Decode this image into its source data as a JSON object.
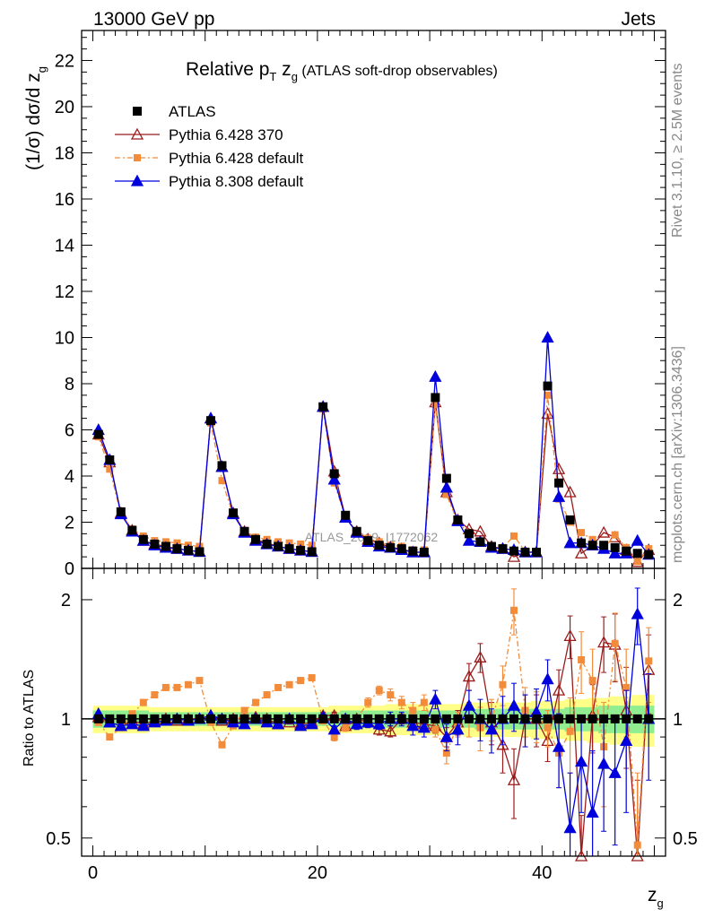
{
  "header": {
    "energy_label": "13000 GeV pp",
    "category_label": "Jets"
  },
  "sidebar": {
    "rivet_label": "Rivet 3.1.10, ≥ 2.5M events",
    "site_label": "mcplots.cern.ch [arXiv:1306.3436]"
  },
  "watermark": "ATLAS_2019_I1772062",
  "colors": {
    "atlas": "#000000",
    "py6_370": "#9b1b1b",
    "py6_def": "#f28c3a",
    "py8_def": "#0000dd",
    "band_inner": "#90ee90",
    "band_outer": "#ffff88"
  },
  "chart_data": {
    "type": "scatter",
    "title": {
      "main": "Relative p",
      "sub_t": "T",
      "main2": " z",
      "sub_g": "g",
      "small": " (ATLAS soft-drop observables)"
    },
    "xlabel": "z",
    "xlabel_sub": "g",
    "ylabel": "(1/σ) dσ/d z",
    "ylabel_sub": "g",
    "ratio_ylabel": "Ratio to ATLAS",
    "xlim": [
      -1,
      51
    ],
    "ylim": [
      0,
      23.3
    ],
    "ratio_ylim": [
      0.45,
      2.4
    ],
    "x_ticks": [
      "0",
      "20",
      "40"
    ],
    "y_ticks": [
      "0",
      "2",
      "4",
      "6",
      "8",
      "10",
      "12",
      "14",
      "16",
      "18",
      "20",
      "22"
    ],
    "ratio_ticks": [
      "0.5",
      "1",
      "2"
    ],
    "legend": [
      "ATLAS",
      "Pythia 6.428 370",
      "Pythia 6.428 default",
      "Pythia 8.308 default"
    ],
    "x": [
      0.5,
      1.5,
      2.5,
      3.5,
      4.5,
      5.5,
      6.5,
      7.5,
      8.5,
      9.5,
      10.5,
      11.5,
      12.5,
      13.5,
      14.5,
      15.5,
      16.5,
      17.5,
      18.5,
      19.5,
      20.5,
      21.5,
      22.5,
      23.5,
      24.5,
      25.5,
      26.5,
      27.5,
      28.5,
      29.5,
      30.5,
      31.5,
      32.5,
      33.5,
      34.5,
      35.5,
      36.5,
      37.5,
      38.5,
      39.5,
      40.5,
      41.5,
      42.5,
      43.5,
      44.5,
      45.5,
      46.5,
      47.5,
      48.5,
      49.5
    ],
    "series": [
      {
        "name": "ATLAS",
        "values": [
          5.8,
          4.7,
          2.45,
          1.65,
          1.25,
          1.05,
          0.95,
          0.85,
          0.78,
          0.72,
          6.4,
          4.45,
          2.4,
          1.6,
          1.25,
          1.05,
          0.95,
          0.85,
          0.78,
          0.72,
          7.0,
          4.1,
          2.3,
          1.6,
          1.2,
          1.0,
          0.9,
          0.85,
          0.75,
          0.7,
          7.4,
          3.9,
          2.1,
          1.5,
          1.15,
          0.95,
          0.85,
          0.75,
          0.7,
          0.7,
          7.9,
          3.7,
          2.1,
          1.1,
          1.0,
          1.0,
          0.9,
          0.75,
          0.65,
          0.6
        ],
        "ratio": [
          1,
          1,
          1,
          1,
          1,
          1,
          1,
          1,
          1,
          1,
          1,
          1,
          1,
          1,
          1,
          1,
          1,
          1,
          1,
          1,
          1,
          1,
          1,
          1,
          1,
          1,
          1,
          1,
          1,
          1,
          1,
          1,
          1,
          1,
          1,
          1,
          1,
          1,
          1,
          1,
          1,
          1,
          1,
          1,
          1,
          1,
          1,
          1,
          1,
          1
        ],
        "band_inner": [
          0.05,
          0.05,
          0.05,
          0.05,
          0.05,
          0.04,
          0.04,
          0.04,
          0.04,
          0.04,
          0.04,
          0.04,
          0.04,
          0.04,
          0.04,
          0.04,
          0.04,
          0.04,
          0.04,
          0.04,
          0.04,
          0.04,
          0.05,
          0.05,
          0.05,
          0.05,
          0.05,
          0.05,
          0.05,
          0.05,
          0.05,
          0.05,
          0.05,
          0.05,
          0.06,
          0.06,
          0.06,
          0.06,
          0.06,
          0.06,
          0.06,
          0.06,
          0.07,
          0.07,
          0.07,
          0.08,
          0.08,
          0.08,
          0.08,
          0.08
        ],
        "band_outer": [
          0.08,
          0.08,
          0.08,
          0.08,
          0.08,
          0.07,
          0.07,
          0.07,
          0.07,
          0.07,
          0.07,
          0.07,
          0.07,
          0.07,
          0.07,
          0.07,
          0.07,
          0.07,
          0.07,
          0.07,
          0.07,
          0.08,
          0.08,
          0.08,
          0.08,
          0.08,
          0.09,
          0.09,
          0.09,
          0.09,
          0.09,
          0.09,
          0.09,
          0.1,
          0.1,
          0.1,
          0.1,
          0.1,
          0.1,
          0.11,
          0.11,
          0.11,
          0.12,
          0.12,
          0.13,
          0.13,
          0.14,
          0.14,
          0.15,
          0.15
        ]
      },
      {
        "name": "Pythia 6.428 370",
        "values": [
          5.8,
          4.6,
          2.4,
          1.65,
          1.2,
          1.05,
          0.95,
          0.85,
          0.78,
          0.72,
          6.5,
          4.4,
          2.4,
          1.6,
          1.25,
          1.1,
          0.95,
          0.85,
          0.78,
          0.72,
          7.0,
          4.2,
          2.2,
          1.6,
          1.25,
          1.1,
          0.9,
          0.85,
          0.7,
          0.7,
          7.2,
          3.3,
          2.1,
          1.7,
          1.6,
          0.95,
          0.85,
          0.5,
          0.7,
          0.7,
          6.7,
          4.3,
          3.3,
          0.65,
          1.0,
          1.55,
          1.35,
          0.8,
          0.28,
          0.8
        ],
        "ratio": [
          1.01,
          0.98,
          0.96,
          0.99,
          0.97,
          0.99,
          1.0,
          0.99,
          1.0,
          1.0,
          1.02,
          0.99,
          1.0,
          1.0,
          1.01,
          1.0,
          0.97,
          0.98,
          0.97,
          0.98,
          1.02,
          1.02,
          0.96,
          1.0,
          0.98,
          0.94,
          0.93,
          1.0,
          0.98,
          0.97,
          0.96,
          0.9,
          0.98,
          1.28,
          1.43,
          0.98,
          0.86,
          0.7,
          1.0,
          1.0,
          0.88,
          1.18,
          1.62,
          0.42,
          1.02,
          1.56,
          1.54,
          1.05,
          0.45,
          1.33
        ],
        "err": [
          0.01,
          0.01,
          0.01,
          0.01,
          0.01,
          0.01,
          0.01,
          0.01,
          0.01,
          0.01,
          0.01,
          0.01,
          0.01,
          0.01,
          0.01,
          0.01,
          0.01,
          0.01,
          0.01,
          0.01,
          0.02,
          0.02,
          0.02,
          0.02,
          0.02,
          0.03,
          0.03,
          0.03,
          0.04,
          0.04,
          0.04,
          0.05,
          0.07,
          0.1,
          0.12,
          0.12,
          0.13,
          0.14,
          0.15,
          0.15,
          0.1,
          0.15,
          0.2,
          0.15,
          0.2,
          0.25,
          0.3,
          0.3,
          0.25,
          0.3
        ]
      },
      {
        "name": "Pythia 6.428 default",
        "values": [
          5.7,
          4.3,
          2.35,
          1.7,
          1.4,
          1.2,
          1.15,
          1.1,
          1.0,
          0.95,
          6.3,
          3.8,
          2.3,
          1.65,
          1.35,
          1.25,
          1.15,
          1.1,
          1.05,
          1.0,
          6.9,
          3.7,
          2.2,
          1.6,
          1.3,
          1.15,
          1.0,
          0.95,
          0.8,
          0.8,
          7.1,
          3.2,
          2.0,
          1.5,
          1.1,
          0.95,
          0.9,
          1.4,
          0.75,
          0.7,
          7.5,
          3.0,
          2.0,
          1.55,
          1.25,
          0.85,
          1.45,
          0.9,
          0.3,
          0.85
        ],
        "ratio": [
          0.98,
          0.9,
          0.95,
          1.03,
          1.1,
          1.15,
          1.2,
          1.2,
          1.22,
          1.25,
          0.98,
          0.86,
          0.96,
          1.05,
          1.1,
          1.15,
          1.2,
          1.22,
          1.25,
          1.27,
          0.99,
          0.9,
          0.95,
          1.0,
          1.1,
          1.18,
          1.15,
          1.1,
          1.05,
          1.1,
          0.94,
          0.82,
          0.97,
          1.0,
          0.95,
          1.0,
          1.22,
          1.88,
          1.05,
          1.02,
          0.95,
          0.82,
          0.93,
          1.41,
          1.25,
          0.85,
          1.55,
          1.2,
          0.48,
          1.4
        ],
        "err": [
          0.01,
          0.01,
          0.01,
          0.01,
          0.02,
          0.02,
          0.02,
          0.02,
          0.02,
          0.02,
          0.01,
          0.01,
          0.01,
          0.01,
          0.02,
          0.02,
          0.02,
          0.02,
          0.02,
          0.02,
          0.02,
          0.02,
          0.02,
          0.02,
          0.03,
          0.03,
          0.04,
          0.04,
          0.05,
          0.05,
          0.04,
          0.05,
          0.07,
          0.1,
          0.12,
          0.12,
          0.14,
          0.25,
          0.15,
          0.15,
          0.1,
          0.15,
          0.2,
          0.25,
          0.25,
          0.25,
          0.3,
          0.3,
          0.25,
          0.3
        ]
      },
      {
        "name": "Pythia 8.308 default",
        "values": [
          6.0,
          4.7,
          2.35,
          1.6,
          1.2,
          1.0,
          0.9,
          0.85,
          0.78,
          0.72,
          6.5,
          4.4,
          2.35,
          1.55,
          1.2,
          1.05,
          0.95,
          0.85,
          0.78,
          0.72,
          7.0,
          3.85,
          2.2,
          1.55,
          1.15,
          0.95,
          0.9,
          0.8,
          0.7,
          0.7,
          8.3,
          3.5,
          2.05,
          1.2,
          1.15,
          0.9,
          0.85,
          0.8,
          0.7,
          0.7,
          10.0,
          3.1,
          1.1,
          1.1,
          1.0,
          0.85,
          0.65,
          0.65,
          1.2,
          0.6
        ],
        "ratio": [
          1.03,
          0.98,
          0.96,
          0.97,
          0.96,
          0.98,
          0.99,
          1.0,
          0.99,
          1.0,
          1.02,
          1.0,
          0.98,
          0.97,
          1.0,
          0.98,
          0.97,
          1.0,
          0.96,
          0.97,
          1.01,
          0.94,
          1.0,
          0.97,
          0.98,
          0.97,
          1.0,
          1.0,
          0.96,
          0.95,
          1.12,
          0.9,
          0.94,
          1.08,
          1.0,
          0.94,
          1.0,
          1.08,
          1.0,
          1.04,
          1.26,
          0.85,
          0.53,
          0.78,
          0.58,
          0.77,
          0.73,
          0.88,
          1.84,
          1.0
        ],
        "err": [
          0.01,
          0.01,
          0.01,
          0.01,
          0.01,
          0.01,
          0.01,
          0.01,
          0.01,
          0.01,
          0.01,
          0.01,
          0.01,
          0.01,
          0.01,
          0.01,
          0.01,
          0.01,
          0.01,
          0.01,
          0.02,
          0.02,
          0.02,
          0.03,
          0.03,
          0.03,
          0.04,
          0.04,
          0.05,
          0.05,
          0.06,
          0.07,
          0.08,
          0.1,
          0.12,
          0.12,
          0.14,
          0.15,
          0.15,
          0.15,
          0.15,
          0.18,
          0.2,
          0.2,
          0.25,
          0.25,
          0.25,
          0.3,
          0.3,
          0.3
        ]
      }
    ]
  }
}
